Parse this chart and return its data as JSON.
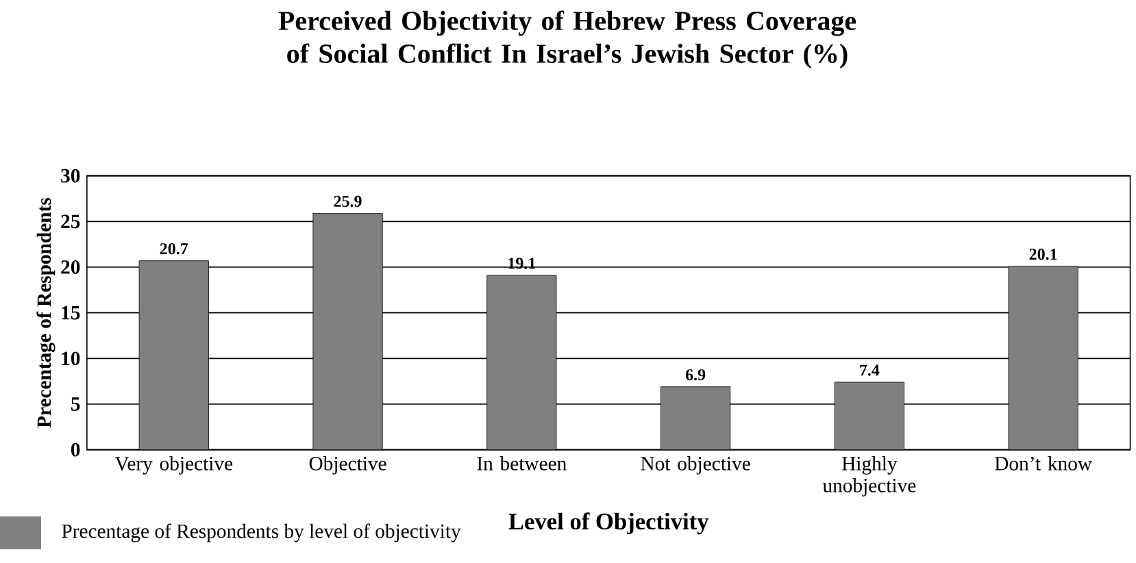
{
  "chart_data": {
    "type": "bar",
    "title": "Perceived Objectivity of Hebrew Press Coverage of Social Conflict In Israel’s Jewish Sector (%)",
    "xlabel": "Level of Objectivity",
    "ylabel": "Precentage of Respondents",
    "categories": [
      "Very objective",
      "Objective",
      "In between",
      "Not objective",
      "Highly unobjective",
      "Don’t know"
    ],
    "series": [
      {
        "name": "Precentage of Respondents by level of objectivity",
        "color": "#808080",
        "values": [
          20.7,
          25.9,
          19.1,
          6.9,
          7.4,
          20.1
        ]
      }
    ],
    "ylim": [
      0,
      30
    ],
    "yticks": [
      0,
      5,
      10,
      15,
      20,
      25,
      30
    ],
    "grid": "y",
    "data_labels": true,
    "legend": "bottom left"
  }
}
